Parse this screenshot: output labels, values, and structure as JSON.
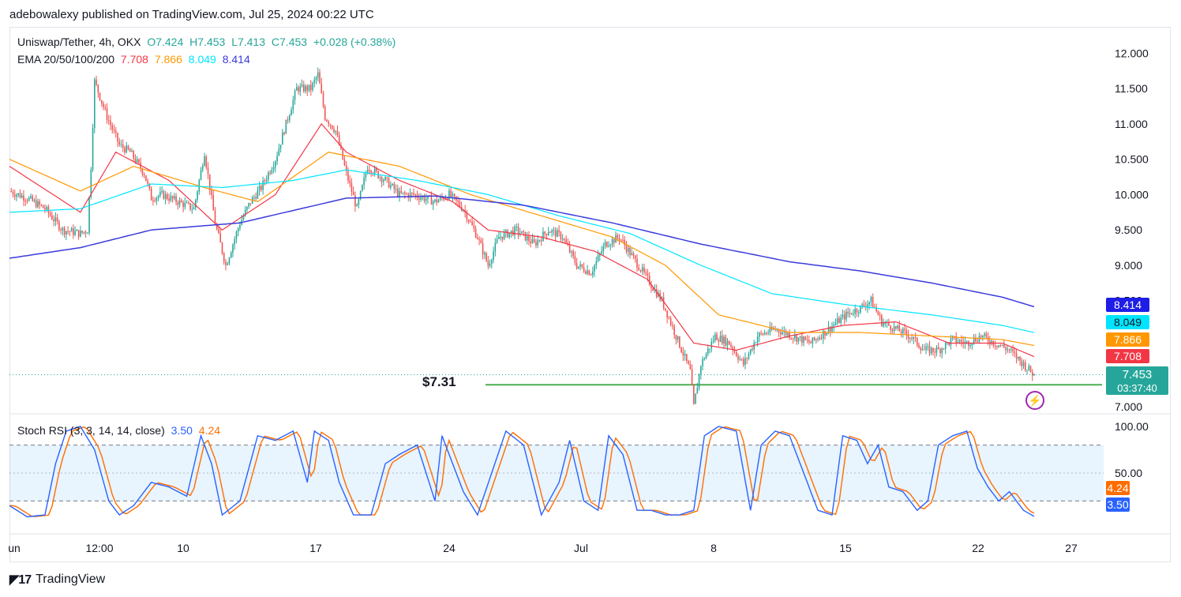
{
  "header": {
    "publisher": "adebowalexy published on TradingView.com, Jul 25, 2024 00:22 UTC"
  },
  "legend": {
    "symbol": "Uniswap/Tether, 4h, OKX",
    "open": "O7.424",
    "high": "H7.453",
    "low": "L7.413",
    "close": "C7.453",
    "change": "+0.028 (+0.38%)",
    "ema_label": "EMA 20/50/100/200",
    "ema20": "7.708",
    "ema50": "7.866",
    "ema100": "8.049",
    "ema200": "8.414"
  },
  "stoch_legend": {
    "label": "Stoch RSI (3, 3, 14, 14, close)",
    "k": "3.50",
    "d": "4.24"
  },
  "annotation": {
    "support_label": "$7.31",
    "support_value": 7.31
  },
  "price_badges": {
    "ema200": "8.414",
    "ema100": "8.049",
    "ema50": "7.866",
    "ema20": "7.708",
    "last": "7.453",
    "countdown": "03:37:40"
  },
  "colors": {
    "up": "#26a69a",
    "down": "#ef5350",
    "ema20": "#f23645",
    "ema50": "#ff9800",
    "ema100": "#00e5ff",
    "ema200": "#3b3bdc",
    "stoch_k": "#2962ff",
    "stoch_d": "#ff6d00",
    "support": "#4caf50"
  },
  "footer": {
    "brand": "TradingView"
  },
  "chart_data": [
    {
      "type": "line",
      "title": "Uniswap/Tether, 4h, OKX",
      "xlabel": "",
      "ylabel": "",
      "x_ticks": [
        "un",
        "12:00",
        "10",
        "17",
        "24",
        "Jul",
        "8",
        "15",
        "22",
        "27"
      ],
      "y_ticks": [
        "12.000",
        "11.500",
        "11.000",
        "10.500",
        "10.000",
        "9.500",
        "9.000",
        "8.500",
        "8.000",
        "7.500",
        "7.000"
      ],
      "ylim": [
        6.9,
        12.35
      ],
      "close_path": [
        [
          0,
          10.05
        ],
        [
          10,
          9.95
        ],
        [
          20,
          9.8
        ],
        [
          30,
          9.5
        ],
        [
          40,
          9.45
        ],
        [
          44,
          9.5
        ],
        [
          46,
          10.4
        ],
        [
          48,
          11.6
        ],
        [
          55,
          11.1
        ],
        [
          62,
          10.7
        ],
        [
          68,
          10.6
        ],
        [
          76,
          10.3
        ],
        [
          80,
          9.95
        ],
        [
          86,
          10.0
        ],
        [
          95,
          9.9
        ],
        [
          104,
          9.8
        ],
        [
          110,
          10.6
        ],
        [
          116,
          9.6
        ],
        [
          122,
          9.0
        ],
        [
          130,
          9.6
        ],
        [
          136,
          9.9
        ],
        [
          142,
          10.1
        ],
        [
          150,
          10.5
        ],
        [
          156,
          11.0
        ],
        [
          162,
          11.5
        ],
        [
          170,
          11.5
        ],
        [
          174,
          11.7
        ],
        [
          178,
          11.1
        ],
        [
          184,
          10.9
        ],
        [
          190,
          10.3
        ],
        [
          196,
          9.8
        ],
        [
          202,
          10.4
        ],
        [
          212,
          10.2
        ],
        [
          220,
          10.0
        ],
        [
          228,
          10.0
        ],
        [
          240,
          9.9
        ],
        [
          248,
          10.0
        ],
        [
          256,
          9.8
        ],
        [
          264,
          9.4
        ],
        [
          270,
          9.0
        ],
        [
          276,
          9.4
        ],
        [
          286,
          9.5
        ],
        [
          296,
          9.3
        ],
        [
          304,
          9.5
        ],
        [
          312,
          9.4
        ],
        [
          320,
          9.0
        ],
        [
          328,
          8.9
        ],
        [
          336,
          9.3
        ],
        [
          344,
          9.4
        ],
        [
          352,
          9.1
        ],
        [
          360,
          8.8
        ],
        [
          368,
          8.5
        ],
        [
          376,
          8.0
        ],
        [
          384,
          7.5
        ],
        [
          386,
          7.0
        ],
        [
          390,
          7.6
        ],
        [
          398,
          8.0
        ],
        [
          406,
          7.9
        ],
        [
          414,
          7.6
        ],
        [
          422,
          8.0
        ],
        [
          432,
          8.1
        ],
        [
          442,
          8.0
        ],
        [
          452,
          7.9
        ],
        [
          462,
          8.1
        ],
        [
          472,
          8.3
        ],
        [
          480,
          8.4
        ],
        [
          486,
          8.5
        ],
        [
          492,
          8.2
        ],
        [
          500,
          8.1
        ],
        [
          508,
          8.0
        ],
        [
          516,
          7.8
        ],
        [
          524,
          7.8
        ],
        [
          532,
          7.95
        ],
        [
          540,
          7.9
        ],
        [
          548,
          8.0
        ],
        [
          556,
          7.9
        ],
        [
          564,
          7.8
        ],
        [
          572,
          7.6
        ],
        [
          578,
          7.45
        ]
      ],
      "series": [
        {
          "name": "EMA 20",
          "values": [
            [
              0,
              10.4
            ],
            [
              40,
              9.75
            ],
            [
              60,
              10.6
            ],
            [
              90,
              10.2
            ],
            [
              120,
              9.5
            ],
            [
              150,
              10.0
            ],
            [
              176,
              11.0
            ],
            [
              190,
              10.6
            ],
            [
              220,
              10.2
            ],
            [
              250,
              9.9
            ],
            [
              270,
              9.5
            ],
            [
              300,
              9.4
            ],
            [
              330,
              9.2
            ],
            [
              360,
              8.8
            ],
            [
              386,
              7.9
            ],
            [
              410,
              7.8
            ],
            [
              440,
              8.0
            ],
            [
              470,
              8.15
            ],
            [
              500,
              8.2
            ],
            [
              530,
              7.9
            ],
            [
              560,
              7.9
            ],
            [
              578,
              7.708
            ]
          ]
        },
        {
          "name": "EMA 50",
          "values": [
            [
              0,
              10.5
            ],
            [
              40,
              10.05
            ],
            [
              70,
              10.4
            ],
            [
              110,
              10.1
            ],
            [
              140,
              9.9
            ],
            [
              180,
              10.6
            ],
            [
              220,
              10.4
            ],
            [
              260,
              10.0
            ],
            [
              300,
              9.7
            ],
            [
              340,
              9.4
            ],
            [
              370,
              9.0
            ],
            [
              400,
              8.3
            ],
            [
              440,
              8.05
            ],
            [
              480,
              8.05
            ],
            [
              520,
              8.0
            ],
            [
              560,
              7.95
            ],
            [
              578,
              7.866
            ]
          ]
        },
        {
          "name": "EMA 100",
          "values": [
            [
              0,
              9.75
            ],
            [
              40,
              9.8
            ],
            [
              80,
              10.15
            ],
            [
              120,
              10.1
            ],
            [
              160,
              10.2
            ],
            [
              190,
              10.35
            ],
            [
              230,
              10.2
            ],
            [
              270,
              10.0
            ],
            [
              310,
              9.7
            ],
            [
              350,
              9.45
            ],
            [
              390,
              9.0
            ],
            [
              430,
              8.6
            ],
            [
              470,
              8.45
            ],
            [
              520,
              8.3
            ],
            [
              560,
              8.15
            ],
            [
              578,
              8.049
            ]
          ]
        },
        {
          "name": "EMA 200",
          "values": [
            [
              0,
              9.1
            ],
            [
              40,
              9.25
            ],
            [
              80,
              9.5
            ],
            [
              130,
              9.6
            ],
            [
              190,
              9.95
            ],
            [
              240,
              9.98
            ],
            [
              290,
              9.85
            ],
            [
              340,
              9.6
            ],
            [
              390,
              9.3
            ],
            [
              440,
              9.05
            ],
            [
              480,
              8.92
            ],
            [
              520,
              8.75
            ],
            [
              560,
              8.55
            ],
            [
              578,
              8.414
            ]
          ]
        }
      ],
      "support_level": 7.31,
      "n_candles": 578
    },
    {
      "type": "line",
      "title": "Stoch RSI (3, 3, 14, 14, close)",
      "y_ticks": [
        "100.00",
        "50.00"
      ],
      "ylim": [
        0,
        100
      ],
      "bands": {
        "upper": 80,
        "middle": 50,
        "lower": 20
      },
      "series": [
        {
          "name": "K",
          "last": 3.5
        },
        {
          "name": "D",
          "last": 4.24
        }
      ],
      "k_path": [
        [
          0,
          15
        ],
        [
          10,
          3
        ],
        [
          20,
          5
        ],
        [
          26,
          60
        ],
        [
          32,
          95
        ],
        [
          40,
          100
        ],
        [
          48,
          75
        ],
        [
          56,
          20
        ],
        [
          62,
          5
        ],
        [
          70,
          15
        ],
        [
          80,
          40
        ],
        [
          90,
          35
        ],
        [
          100,
          25
        ],
        [
          108,
          90
        ],
        [
          114,
          60
        ],
        [
          120,
          5
        ],
        [
          130,
          20
        ],
        [
          140,
          90
        ],
        [
          150,
          85
        ],
        [
          160,
          95
        ],
        [
          168,
          40
        ],
        [
          172,
          95
        ],
        [
          180,
          85
        ],
        [
          186,
          40
        ],
        [
          194,
          5
        ],
        [
          204,
          5
        ],
        [
          212,
          60
        ],
        [
          220,
          70
        ],
        [
          230,
          80
        ],
        [
          240,
          20
        ],
        [
          244,
          90
        ],
        [
          250,
          60
        ],
        [
          256,
          30
        ],
        [
          264,
          5
        ],
        [
          272,
          50
        ],
        [
          280,
          95
        ],
        [
          290,
          80
        ],
        [
          300,
          5
        ],
        [
          310,
          40
        ],
        [
          316,
          85
        ],
        [
          324,
          20
        ],
        [
          332,
          10
        ],
        [
          338,
          90
        ],
        [
          346,
          70
        ],
        [
          354,
          10
        ],
        [
          362,
          10
        ],
        [
          370,
          5
        ],
        [
          378,
          5
        ],
        [
          386,
          10
        ],
        [
          392,
          90
        ],
        [
          400,
          100
        ],
        [
          410,
          95
        ],
        [
          418,
          10
        ],
        [
          424,
          80
        ],
        [
          432,
          95
        ],
        [
          440,
          90
        ],
        [
          450,
          40
        ],
        [
          456,
          10
        ],
        [
          464,
          5
        ],
        [
          470,
          90
        ],
        [
          478,
          85
        ],
        [
          484,
          60
        ],
        [
          490,
          80
        ],
        [
          496,
          35
        ],
        [
          504,
          30
        ],
        [
          512,
          10
        ],
        [
          518,
          20
        ],
        [
          524,
          80
        ],
        [
          532,
          90
        ],
        [
          540,
          95
        ],
        [
          546,
          55
        ],
        [
          552,
          35
        ],
        [
          558,
          20
        ],
        [
          564,
          30
        ],
        [
          572,
          10
        ],
        [
          578,
          3.5
        ]
      ]
    }
  ]
}
